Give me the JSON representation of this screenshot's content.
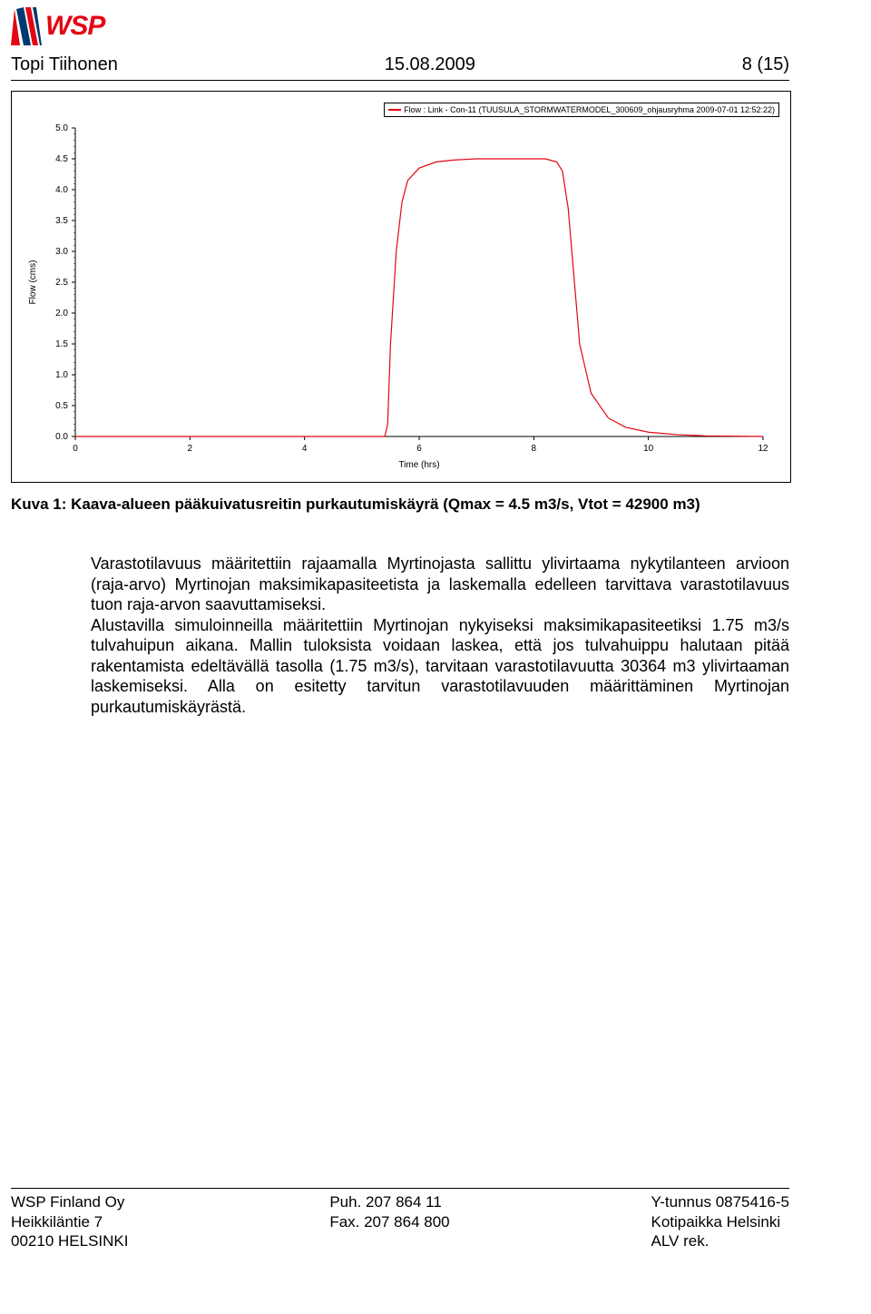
{
  "header": {
    "author": "Topi Tiihonen",
    "date": "15.08.2009",
    "page": "8 (15)",
    "logo_text": "WSP",
    "logo_color": "#e30613"
  },
  "chart": {
    "type": "line",
    "legend": "Flow : Link - Con-11 (TUUSULA_STORMWATERMODEL_300609_ohjausryhma 2009-07-01 12:52:22)",
    "y_label": "Flow (cms)",
    "x_label": "Time (hrs)",
    "ylim": [
      0.0,
      5.0
    ],
    "ytick_step": 0.5,
    "yticks": [
      "0.0",
      "0.5",
      "1.0",
      "1.5",
      "2.0",
      "2.5",
      "3.0",
      "3.5",
      "4.0",
      "4.5",
      "5.0"
    ],
    "xlim": [
      0,
      12
    ],
    "xtick_step": 2,
    "xticks": [
      "0",
      "2",
      "4",
      "6",
      "8",
      "10",
      "12"
    ],
    "line_color": "#e30613",
    "background_color": "#ffffff",
    "border_color": "#000000",
    "series": {
      "x": [
        0,
        5.4,
        5.45,
        5.5,
        5.6,
        5.7,
        5.8,
        6.0,
        6.3,
        6.6,
        7.0,
        7.5,
        8.0,
        8.2,
        8.4,
        8.5,
        8.6,
        8.7,
        8.8,
        9.0,
        9.3,
        9.6,
        10.0,
        10.5,
        11.0,
        12.0
      ],
      "y": [
        0.0,
        0.0,
        0.2,
        1.5,
        3.0,
        3.8,
        4.15,
        4.35,
        4.45,
        4.48,
        4.5,
        4.5,
        4.5,
        4.5,
        4.45,
        4.3,
        3.7,
        2.6,
        1.5,
        0.7,
        0.3,
        0.15,
        0.07,
        0.03,
        0.01,
        0.0
      ]
    }
  },
  "caption": "Kuva 1: Kaava-alueen pääkuivatusreitin purkautumiskäyrä (Qmax = 4.5 m3/s, Vtot = 42900 m3)",
  "body": {
    "p1": "Varastotilavuus määritettiin rajaamalla Myrtinojasta sallittu ylivirtaama nykytilanteen arvioon (raja-arvo) Myrtinojan maksimikapasiteetista ja laskemalla edelleen tarvittava varastotilavuus tuon raja-arvon saavuttamiseksi.",
    "p2": "Alustavilla simuloinneilla määritettiin Myrtinojan nykyiseksi maksimikapasiteetiksi 1.75 m3/s tulvahuipun aikana. Mallin tuloksista voidaan laskea, että jos tulvahuippu halutaan pitää rakentamista edeltävällä tasolla (1.75 m3/s), tarvitaan varastotilavuutta 30364 m3 ylivirtaaman laskemiseksi. Alla on esitetty tarvitun varastotilavuuden määrittäminen Myrtinojan purkautumiskäyrästä."
  },
  "footer": {
    "col1": [
      "WSP Finland Oy",
      "Heikkiläntie 7",
      "00210 HELSINKI"
    ],
    "col2": [
      "Puh. 207 864 11",
      "Fax. 207 864 800"
    ],
    "col3": [
      "Y-tunnus 0875416-5",
      "Kotipaikka Helsinki",
      "ALV rek."
    ]
  }
}
